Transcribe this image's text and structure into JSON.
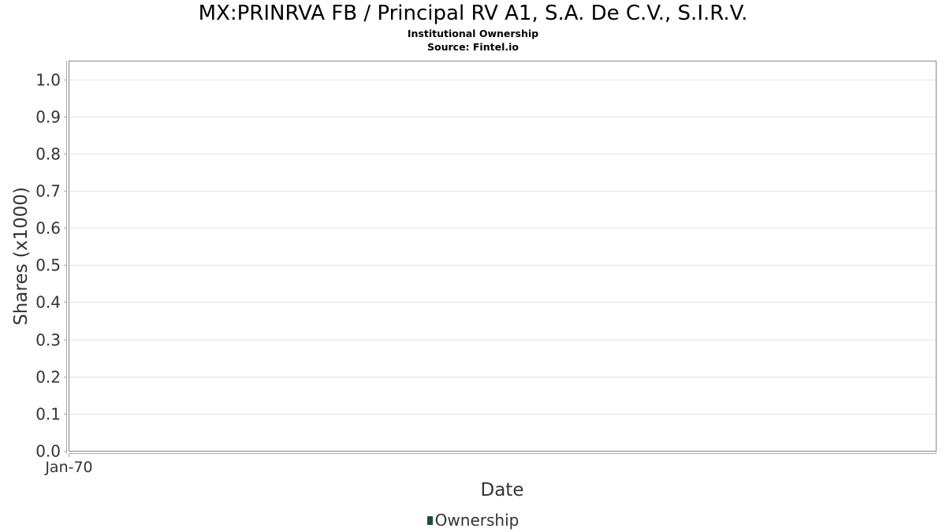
{
  "chart_data": {
    "type": "line",
    "title": "MX:PRINRVA FB / Principal RV A1, S.A. De C.V., S.I.R.V.",
    "subtitles": [
      "Institutional Ownership",
      "Source: Fintel.io"
    ],
    "xlabel": "Date",
    "ylabel": "Shares (x1000)",
    "x_ticks": [
      "Jan-70"
    ],
    "y_ticks": [
      "0.0",
      "0.1",
      "0.2",
      "0.3",
      "0.4",
      "0.5",
      "0.6",
      "0.7",
      "0.8",
      "0.9",
      "1.0"
    ],
    "ylim": [
      0,
      1.05
    ],
    "grid": true,
    "legend_position": "bottom-center",
    "series": [
      {
        "name": "Ownership",
        "color": "#1b4d2e",
        "values": []
      }
    ]
  }
}
